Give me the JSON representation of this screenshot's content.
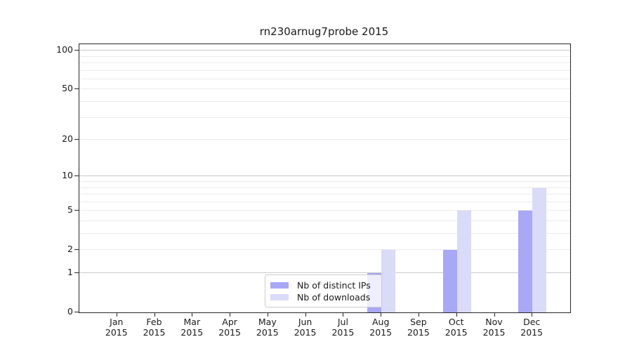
{
  "chart_data": {
    "type": "bar",
    "title": "rn230arnug7probe 2015",
    "categories": [
      "Jan",
      "Feb",
      "Mar",
      "Apr",
      "May",
      "Jun",
      "Jul",
      "Aug",
      "Sep",
      "Oct",
      "Nov",
      "Dec"
    ],
    "x_tick_year": "2015",
    "series": [
      {
        "name": "Nb of distinct IPs",
        "color": "#a8a8f7",
        "values": [
          0,
          0,
          0,
          0,
          0,
          0,
          0,
          1,
          0,
          2,
          0,
          5
        ]
      },
      {
        "name": "Nb of downloads",
        "color": "#dadaf9",
        "values": [
          0,
          0,
          0,
          0,
          0,
          0,
          0,
          2,
          0,
          5,
          0,
          8
        ]
      }
    ],
    "y_ticks": [
      0,
      1,
      2,
      5,
      10,
      20,
      50,
      100
    ],
    "y_minor_ticks": [
      3,
      4,
      6,
      7,
      8,
      9,
      30,
      40,
      60,
      70,
      80,
      90
    ],
    "y_major_gridlines": [
      1,
      10,
      100
    ],
    "scale": "log1p",
    "ylim": [
      0,
      112
    ],
    "xlabel": "",
    "ylabel": "",
    "grid": "on",
    "legend_position": "lower center"
  },
  "legend": {
    "item1": "Nb of distinct IPs",
    "item2": "Nb of downloads"
  }
}
